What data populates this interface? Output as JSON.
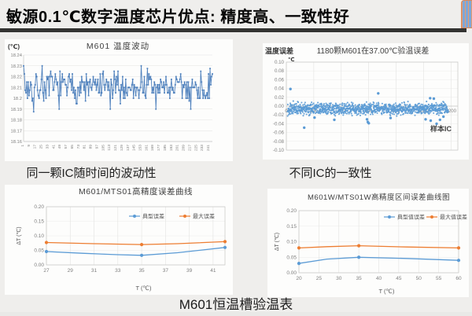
{
  "slide": {
    "title": "敏源0.1℃数字温度芯片优点: 精度高、一致性好",
    "caption_top_left": "同一颗IC随时间的波动性",
    "caption_top_right": "不同IC的一致性",
    "caption_bottom": "M601恒温槽验温表",
    "logo_icon": "striped-bookmark-logo",
    "colors": {
      "accent_blue": "#5b9bd5",
      "accent_orange": "#ed7d31",
      "classic_blue": "#4f81bd",
      "divider": "#333331",
      "background": "#efeeec",
      "panel": "#fdfdfc",
      "tick_text": "#7f7f7f",
      "chart_title": "#404040"
    }
  },
  "chart_data": [
    {
      "id": "m601-fluctuation",
      "type": "line",
      "title": "M601 温度波动",
      "y_axis_unit": "(℃)",
      "ylim": [
        18.16,
        18.24
      ],
      "y_ticks": [
        "18.24",
        "18.23",
        "18.22",
        "18.21",
        "18.2",
        "18.19",
        "18.18",
        "18.17",
        "18.16"
      ],
      "x_ticks": [
        1,
        9,
        17,
        25,
        33,
        41,
        49,
        57,
        65,
        73,
        81,
        89,
        97,
        105,
        113,
        121,
        129,
        137,
        145,
        153,
        161,
        169,
        177,
        185,
        193,
        201,
        209,
        217,
        225,
        233,
        241
      ],
      "n_points": 245,
      "color": "#4f81bd",
      "noise_band": {
        "center": 18.21,
        "min": 18.19,
        "max": 18.2275,
        "step": 0.0025,
        "seed": 7
      },
      "notable_points": [
        [
          1,
          18.23
        ],
        [
          14,
          18.1875
        ],
        [
          25,
          18.23
        ],
        [
          47,
          18.19
        ],
        [
          113,
          18.19
        ],
        [
          153,
          18.23
        ],
        [
          161,
          18.2275
        ],
        [
          172,
          18.19
        ],
        [
          217,
          18.19
        ],
        [
          241,
          18.2
        ]
      ]
    },
    {
      "id": "m601-consistency",
      "type": "scatter",
      "corner_label": "温度误差",
      "y_axis_unit": "℃",
      "title": "1180颗M601在37.00℃验温误差",
      "xlabel": "样本IC",
      "ylim": [
        -0.1,
        0.1
      ],
      "y_ticks": [
        "0.10",
        "0.08",
        "0.06",
        "0.04",
        "0.02",
        "0.00",
        "-0.02",
        "-0.04",
        "-0.06",
        "-0.08",
        "-0.10"
      ],
      "xlim": [
        0,
        1250
      ],
      "x_ticks": [
        0,
        200,
        400,
        600,
        800,
        1000,
        1200
      ],
      "n_points": 1180,
      "band": {
        "center": -0.006,
        "min": -0.0225,
        "max": 0.0125,
        "seed": 13
      },
      "outliers": [
        [
          30,
          0.039
        ],
        [
          130,
          -0.049
        ],
        [
          205,
          -0.026
        ],
        [
          350,
          -0.031
        ],
        [
          588,
          -0.03
        ],
        [
          594,
          -0.036
        ],
        [
          601,
          -0.039
        ],
        [
          670,
          0.029
        ],
        [
          760,
          -0.027
        ],
        [
          1015,
          -0.03
        ],
        [
          1048,
          0.018
        ],
        [
          1052,
          -0.033
        ],
        [
          1075,
          0.017
        ],
        [
          1095,
          -0.04
        ],
        [
          1120,
          -0.031
        ],
        [
          1145,
          -0.024
        ]
      ],
      "color": "#5b9bd5"
    },
    {
      "id": "m601-mts01-error-curve",
      "type": "line",
      "title": "M601/MTS01高精度误差曲线",
      "xlabel": "T (℃)",
      "ylabel": "ΔT (℃)",
      "ylim": [
        0,
        0.2
      ],
      "y_ticks": [
        "0.00",
        "0.05",
        "0.10",
        "0.15",
        "0.20"
      ],
      "xlim": [
        27,
        42
      ],
      "x_ticks": [
        27,
        29,
        31,
        33,
        35,
        37,
        39,
        41
      ],
      "series": [
        {
          "name": "典型误差",
          "color": "#5b9bd5",
          "marker_points": [
            [
              27,
              0.046
            ],
            [
              35,
              0.033
            ],
            [
              42,
              0.06
            ]
          ],
          "line_points": [
            [
              27,
              0.046
            ],
            [
              30,
              0.04
            ],
            [
              33,
              0.035
            ],
            [
              35,
              0.033
            ],
            [
              38,
              0.042
            ],
            [
              42,
              0.06
            ]
          ]
        },
        {
          "name": "最大误差",
          "color": "#ed7d31",
          "marker_points": [
            [
              27,
              0.077
            ],
            [
              35,
              0.07
            ],
            [
              42,
              0.08
            ]
          ],
          "line_points": [
            [
              27,
              0.077
            ],
            [
              31,
              0.073
            ],
            [
              35,
              0.07
            ],
            [
              38,
              0.073
            ],
            [
              42,
              0.08
            ]
          ]
        }
      ]
    },
    {
      "id": "m601w-mts01w-error-curve",
      "type": "line",
      "title": "M601W/MTS01W高精度区间误差曲线图",
      "xlabel": "T (℃)",
      "ylabel": "ΔT (℃)",
      "ylim": [
        0,
        0.2
      ],
      "y_ticks": [
        "0.00",
        "0.05",
        "0.10",
        "0.15",
        "0.20"
      ],
      "xlim": [
        20,
        60
      ],
      "x_ticks": [
        20,
        25,
        30,
        35,
        40,
        45,
        50,
        55,
        60
      ],
      "series": [
        {
          "name": "典型值误差",
          "color": "#5b9bd5",
          "marker_points": [
            [
              20,
              0.03
            ],
            [
              35,
              0.05
            ],
            [
              60,
              0.04
            ]
          ],
          "line_points": [
            [
              20,
              0.03
            ],
            [
              27,
              0.044
            ],
            [
              35,
              0.05
            ],
            [
              47,
              0.046
            ],
            [
              60,
              0.04
            ]
          ]
        },
        {
          "name": "最大值误差",
          "color": "#ed7d31",
          "marker_points": [
            [
              20,
              0.08
            ],
            [
              35,
              0.087
            ],
            [
              60,
              0.08
            ]
          ],
          "line_points": [
            [
              20,
              0.08
            ],
            [
              27,
              0.084
            ],
            [
              35,
              0.087
            ],
            [
              47,
              0.083
            ],
            [
              60,
              0.08
            ]
          ]
        }
      ]
    }
  ]
}
